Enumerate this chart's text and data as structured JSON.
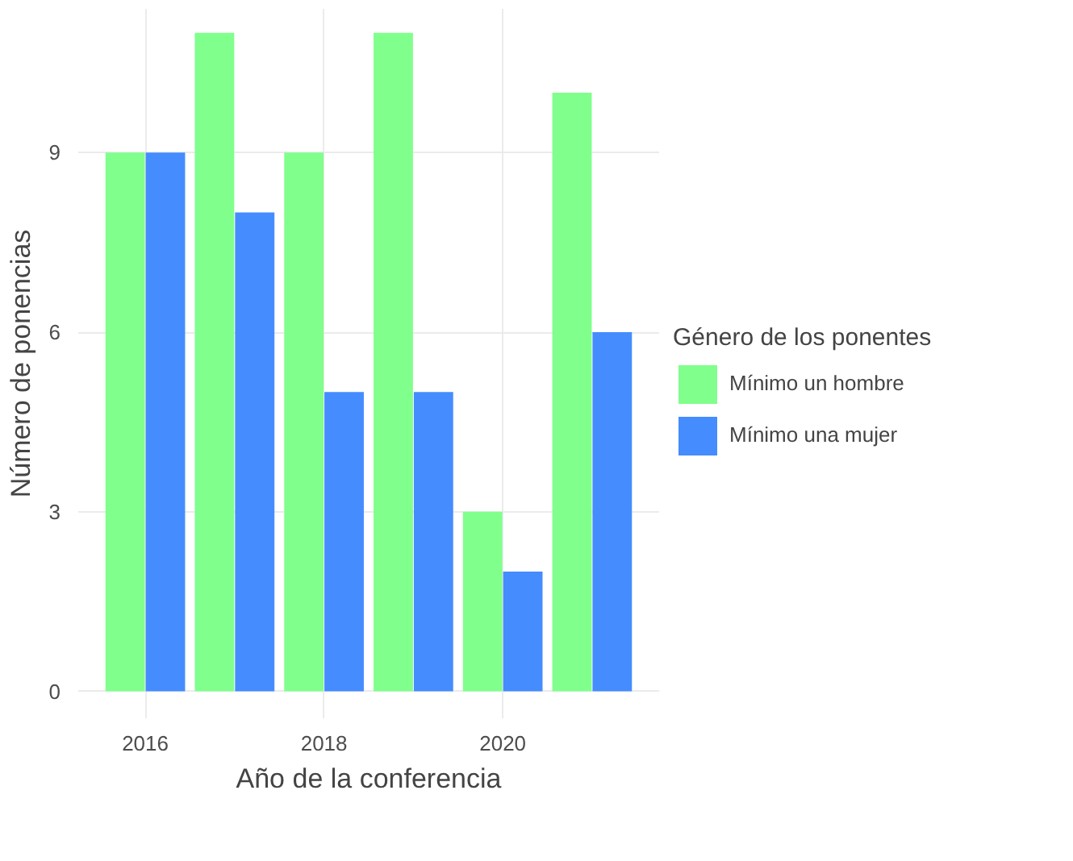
{
  "chart_data": {
    "type": "bar",
    "xlabel": "Año de la conferencia",
    "ylabel": "Número de ponencias",
    "legend_title": "Género de los ponentes",
    "x": [
      2016,
      2017,
      2018,
      2019,
      2020,
      2021
    ],
    "series": [
      {
        "name": "Mínimo un hombre",
        "color": "#80ff8c",
        "values": [
          9,
          11,
          9,
          11,
          3,
          10
        ]
      },
      {
        "name": "Mínimo una mujer",
        "color": "#458cff",
        "values": [
          9,
          8,
          5,
          5,
          2,
          6
        ]
      }
    ],
    "xlim": [
      2015.25,
      2021.75
    ],
    "ylim": [
      -0.45,
      11.4
    ],
    "xticks": [
      2016,
      2018,
      2020
    ],
    "yticks": [
      0,
      3,
      6,
      9
    ],
    "grid": true,
    "legend": "right"
  }
}
